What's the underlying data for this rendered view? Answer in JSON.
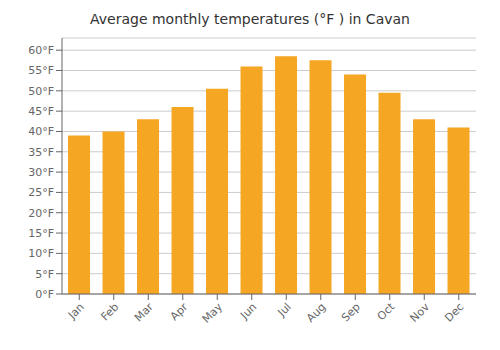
{
  "chart_data": {
    "type": "bar",
    "title": "Average monthly temperatures (°F ) in Cavan",
    "categories": [
      "Jan",
      "Feb",
      "Mar",
      "Apr",
      "May",
      "Jun",
      "Jul",
      "Aug",
      "Sep",
      "Oct",
      "Nov",
      "Dec"
    ],
    "values": [
      39,
      40,
      43,
      46,
      50.5,
      56,
      58.5,
      57.5,
      54,
      49.5,
      43,
      41
    ],
    "color": "#F5A623",
    "ylim": [
      0,
      63
    ],
    "yticks": [
      {
        "value": 0,
        "label": "0°F"
      },
      {
        "value": 5,
        "label": "5°F"
      },
      {
        "value": 10,
        "label": "10°F"
      },
      {
        "value": 15,
        "label": "15°F"
      },
      {
        "value": 20,
        "label": "20°F"
      },
      {
        "value": 25,
        "label": "25°F"
      },
      {
        "value": 30,
        "label": "30°F"
      },
      {
        "value": 35,
        "label": "35°F"
      },
      {
        "value": 40,
        "label": "40°F"
      },
      {
        "value": 45,
        "label": "45°F"
      },
      {
        "value": 50,
        "label": "50°F"
      },
      {
        "value": 55,
        "label": "55°F"
      },
      {
        "value": 60,
        "label": "60°F"
      }
    ],
    "grid": true
  }
}
